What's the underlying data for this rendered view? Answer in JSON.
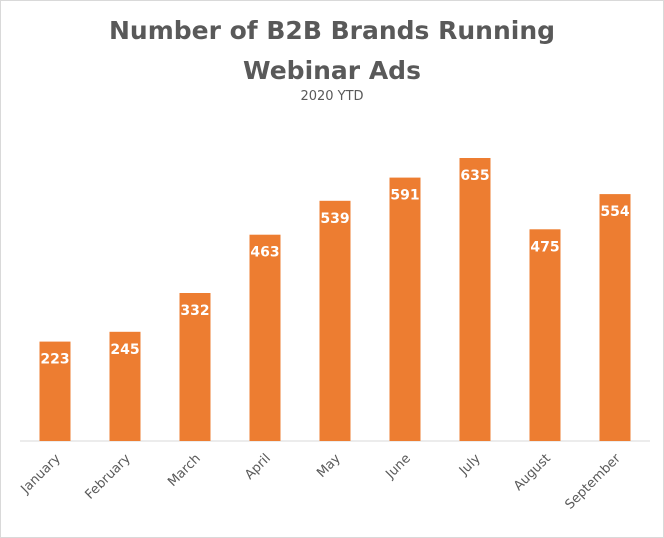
{
  "chart_data": {
    "type": "bar",
    "title_lines": [
      "Number of B2B Brands Running",
      "Webinar Ads"
    ],
    "subtitle": "2020 YTD",
    "categories": [
      "January",
      "February",
      "March",
      "April",
      "May",
      "June",
      "July",
      "August",
      "September"
    ],
    "values": [
      223,
      245,
      332,
      463,
      539,
      591,
      635,
      475,
      554
    ],
    "ylim": [
      0,
      700
    ],
    "grid": false,
    "legend": "none",
    "bar_color": "#ED7D31",
    "label_color": "#FFFFFF",
    "axis_color": "#D9D9D9",
    "text_color": "#595959"
  }
}
